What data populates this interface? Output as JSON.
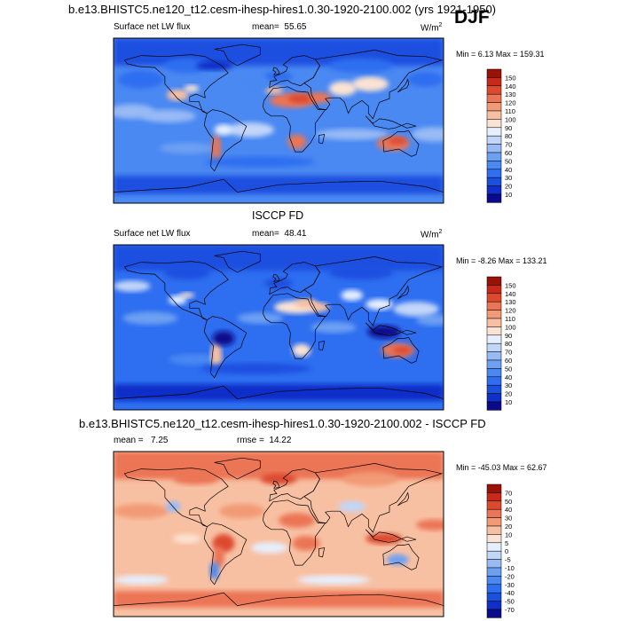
{
  "season": "DJF",
  "panels": [
    {
      "title": "b.e13.BHISTC5.ne120_t12.cesm-ihesp-hires1.0.30-1920-2100.002 (yrs 1921-1950)",
      "left_label": "Surface net LW flux",
      "stat_label": "mean=",
      "stat_value": "55.65",
      "units_base": "W/m",
      "units_exp": "2",
      "minmax_label": "Min =   6.13 Max = 159.31",
      "colorbar_levels": [
        "150",
        "140",
        "130",
        "120",
        "110",
        "100",
        "90",
        "80",
        "70",
        "60",
        "50",
        "40",
        "30",
        "20",
        "10"
      ]
    },
    {
      "title": "ISCCP FD",
      "left_label": "Surface net LW flux",
      "stat_label": "mean=",
      "stat_value": "48.41",
      "units_base": "W/m",
      "units_exp": "2",
      "minmax_label": "Min =  -8.26 Max = 133.21",
      "colorbar_levels": [
        "150",
        "140",
        "130",
        "120",
        "110",
        "100",
        "90",
        "80",
        "70",
        "60",
        "50",
        "40",
        "30",
        "20",
        "10"
      ]
    },
    {
      "title": "b.e13.BHISTC5.ne120_t12.cesm-ihesp-hires1.0.30-1920-2100.002 - ISCCP FD",
      "left_label": "mean =",
      "left_value": "7.25",
      "stat_label": "rmse =",
      "stat_value": "14.22",
      "minmax_label": "Min = -45.03 Max =  62.67",
      "colorbar_levels": [
        "70",
        "50",
        "40",
        "30",
        "20",
        "10",
        "5",
        "0",
        "-5",
        "-10",
        "-20",
        "-30",
        "-40",
        "-50",
        "-70"
      ]
    }
  ],
  "chart_data": [
    {
      "type": "heatmap",
      "title": "b.e13.BHISTC5.ne120_t12.cesm-ihesp-hires1.0.30-1920-2100.002 (yrs 1921-1950)",
      "variable": "Surface net LW flux",
      "units": "W/m2",
      "mean": 55.65,
      "min": 6.13,
      "max": 159.31,
      "contour_levels": [
        10,
        20,
        30,
        40,
        50,
        60,
        70,
        80,
        90,
        100,
        110,
        120,
        130,
        140,
        150
      ],
      "colors": [
        "#0a0a8c",
        "#0f2fc8",
        "#1a50e0",
        "#2e6ef0",
        "#4a88f2",
        "#6da0f3",
        "#98baf5",
        "#c2d6f8",
        "#e6efff",
        "#fbe3d3",
        "#f8c0a2",
        "#f29a76",
        "#eb7554",
        "#dc4a2e",
        "#c72a18",
        "#9a1108"
      ]
    },
    {
      "type": "heatmap",
      "title": "ISCCP FD",
      "variable": "Surface net LW flux",
      "units": "W/m2",
      "mean": 48.41,
      "min": -8.26,
      "max": 133.21,
      "contour_levels": [
        10,
        20,
        30,
        40,
        50,
        60,
        70,
        80,
        90,
        100,
        110,
        120,
        130,
        140,
        150
      ],
      "colors": [
        "#0a0a8c",
        "#0f2fc8",
        "#1a50e0",
        "#2e6ef0",
        "#4a88f2",
        "#6da0f3",
        "#98baf5",
        "#c2d6f8",
        "#e6efff",
        "#fbe3d3",
        "#f8c0a2",
        "#f29a76",
        "#eb7554",
        "#dc4a2e",
        "#c72a18",
        "#9a1108"
      ]
    },
    {
      "type": "heatmap",
      "title": "b.e13.BHISTC5.ne120_t12.cesm-ihesp-hires1.0.30-1920-2100.002 - ISCCP FD",
      "mean": 7.25,
      "rmse": 14.22,
      "min": -45.03,
      "max": 62.67,
      "contour_levels": [
        -70,
        -50,
        -40,
        -30,
        -20,
        -10,
        -5,
        0,
        5,
        10,
        20,
        30,
        40,
        50,
        70
      ],
      "colors": [
        "#0a0a8c",
        "#0f2fc8",
        "#1a50e0",
        "#2e6ef0",
        "#4a88f2",
        "#6da0f3",
        "#98baf5",
        "#c2d6f8",
        "#e6efff",
        "#fbe3d3",
        "#f8c0a2",
        "#f29a76",
        "#eb7554",
        "#dc4a2e",
        "#c72a18",
        "#9a1108"
      ]
    }
  ]
}
